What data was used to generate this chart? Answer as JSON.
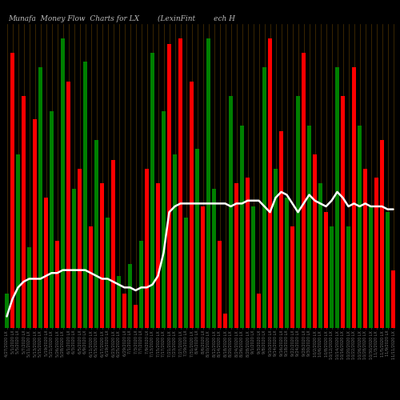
{
  "title": "Munafa  Money Flow  Charts for LX        (LexinFint        ech H",
  "background_color": "#000000",
  "bar_colors": [
    "green",
    "red",
    "green",
    "red",
    "green",
    "red",
    "green",
    "red",
    "green",
    "red",
    "green",
    "red",
    "green",
    "red",
    "green",
    "red",
    "green",
    "red",
    "green",
    "red",
    "green",
    "red",
    "green",
    "red",
    "green",
    "red",
    "green",
    "red",
    "green",
    "red",
    "green",
    "red",
    "green",
    "red",
    "green",
    "red",
    "green",
    "green",
    "red",
    "red",
    "green",
    "red",
    "green",
    "red",
    "green",
    "red",
    "green",
    "red",
    "green",
    "red",
    "green",
    "red",
    "green",
    "red",
    "green",
    "red",
    "green",
    "red",
    "green",
    "green",
    "red",
    "green",
    "red",
    "green",
    "red",
    "green",
    "red",
    "red",
    "green",
    "red"
  ],
  "bar_values": [
    12,
    95,
    60,
    80,
    28,
    72,
    90,
    45,
    75,
    30,
    100,
    85,
    48,
    55,
    92,
    35,
    65,
    50,
    38,
    58,
    18,
    12,
    22,
    8,
    30,
    55,
    95,
    50,
    75,
    98,
    60,
    100,
    38,
    85,
    62,
    42,
    100,
    48,
    30,
    5,
    80,
    50,
    70,
    52,
    42,
    12,
    90,
    100,
    55,
    68,
    45,
    35,
    80,
    95,
    70,
    60,
    50,
    40,
    35,
    90,
    80,
    35,
    90,
    70,
    55,
    42,
    52,
    65,
    40,
    20
  ],
  "line_values": [
    4,
    10,
    14,
    16,
    17,
    17,
    17,
    18,
    19,
    19,
    20,
    20,
    20,
    20,
    20,
    19,
    18,
    17,
    17,
    16,
    15,
    14,
    14,
    13,
    14,
    14,
    15,
    18,
    26,
    40,
    42,
    43,
    43,
    43,
    43,
    43,
    43,
    43,
    43,
    43,
    42,
    43,
    43,
    44,
    44,
    44,
    42,
    40,
    45,
    47,
    46,
    43,
    40,
    43,
    46,
    44,
    43,
    42,
    44,
    47,
    45,
    42,
    43,
    42,
    43,
    42,
    42,
    42,
    41,
    41
  ],
  "dates": [
    "4/27/2020 LX",
    "5/1/2020 LX",
    "5/5/2020 LX",
    "5/7/2020 LX",
    "5/11/2020 LX",
    "5/13/2020 LX",
    "5/15/2020 LX",
    "5/19/2020 LX",
    "5/21/2020 LX",
    "5/26/2020 LX",
    "5/28/2020 LX",
    "6/1/2020 LX",
    "6/3/2020 LX",
    "6/5/2020 LX",
    "6/9/2020 LX",
    "6/11/2020 LX",
    "6/15/2020 LX",
    "6/17/2020 LX",
    "6/19/2020 LX",
    "6/23/2020 LX",
    "6/25/2020 LX",
    "6/29/2020 LX",
    "7/1/2020 LX",
    "7/3/2020 LX",
    "7/7/2020 LX",
    "7/9/2020 LX",
    "7/13/2020 LX",
    "7/15/2020 LX",
    "7/17/2020 LX",
    "7/21/2020 LX",
    "7/23/2020 LX",
    "7/27/2020 LX",
    "7/29/2020 LX",
    "7/31/2020 LX",
    "8/4/2020 LX",
    "8/6/2020 LX",
    "8/10/2020 LX",
    "8/12/2020 LX",
    "8/14/2020 LX",
    "8/18/2020 LX",
    "8/20/2020 LX",
    "8/24/2020 LX",
    "8/26/2020 LX",
    "8/28/2020 LX",
    "9/1/2020 LX",
    "9/3/2020 LX",
    "9/8/2020 LX",
    "9/10/2020 LX",
    "9/14/2020 LX",
    "9/16/2020 LX",
    "9/18/2020 LX",
    "9/22/2020 LX",
    "9/24/2020 LX",
    "9/28/2020 LX",
    "9/30/2020 LX",
    "10/2/2020 LX",
    "10/6/2020 LX",
    "10/8/2020 LX",
    "10/12/2020 LX",
    "10/14/2020 LX",
    "10/16/2020 LX",
    "10/20/2020 LX",
    "10/22/2020 LX",
    "10/26/2020 LX",
    "10/28/2020 LX",
    "10/30/2020 LX",
    "11/3/2020 LX",
    "11/5/2020 LX",
    "11/9/2020 LX",
    "11/11/2020 LX"
  ],
  "grid_color": "#5a3a00",
  "line_color": "#ffffff",
  "line_width": 1.8,
  "title_color": "#bbbbbb",
  "title_fontsize": 6.5,
  "xlabel_fontsize": 3.5,
  "ylim": [
    0,
    105
  ],
  "figsize": [
    5.0,
    5.0
  ],
  "dpi": 100
}
